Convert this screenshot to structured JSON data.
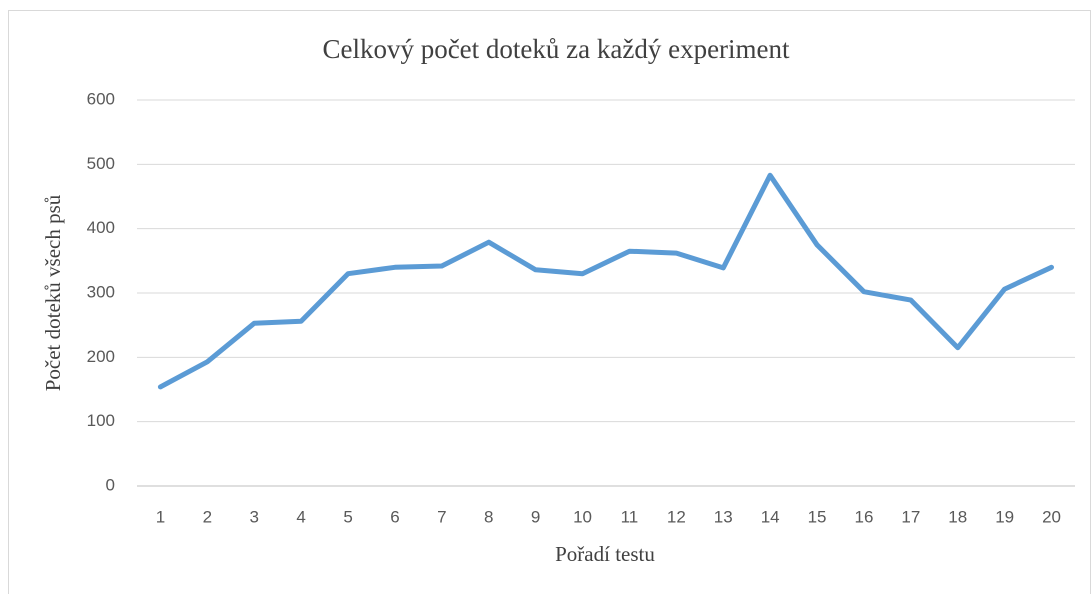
{
  "chart_data": {
    "type": "line",
    "title": "Celkový počet doteků za každý experiment",
    "x_label": "Pořadí testu",
    "y_label": "Počet doteků všech psů",
    "categories": [
      "1",
      "2",
      "3",
      "4",
      "5",
      "6",
      "7",
      "8",
      "9",
      "10",
      "11",
      "12",
      "13",
      "14",
      "15",
      "16",
      "17",
      "18",
      "19",
      "20"
    ],
    "values": [
      154,
      193,
      253,
      256,
      330,
      340,
      342,
      379,
      336,
      330,
      365,
      362,
      339,
      483,
      375,
      302,
      289,
      215,
      306,
      340
    ],
    "color": "#5b9bd5",
    "ylim": [
      0,
      600
    ],
    "yticks": [
      0,
      100,
      200,
      300,
      400,
      500,
      600
    ],
    "grid": true
  }
}
